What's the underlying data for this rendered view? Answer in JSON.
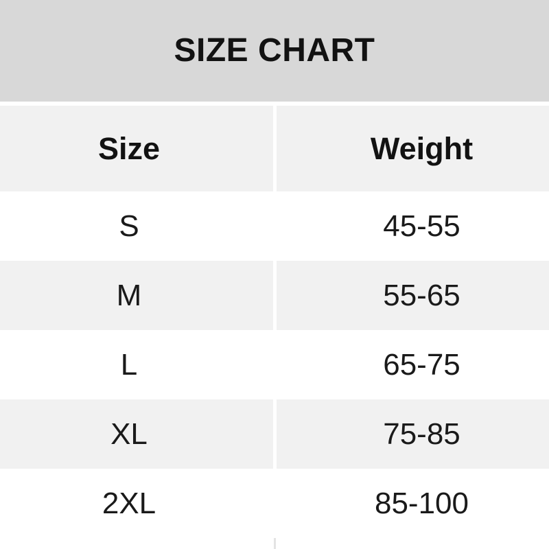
{
  "title": "SIZE CHART",
  "table": {
    "columns": [
      "Size",
      "Weight"
    ],
    "rows": [
      {
        "size": "S",
        "weight": "45-55"
      },
      {
        "size": "M",
        "weight": "55-65"
      },
      {
        "size": "L",
        "weight": "65-75"
      },
      {
        "size": "XL",
        "weight": "75-85"
      },
      {
        "size": "2XL",
        "weight": "85-100"
      }
    ]
  },
  "chart_data": {
    "type": "table",
    "title": "SIZE CHART",
    "columns": [
      "Size",
      "Weight"
    ],
    "rows": [
      [
        "S",
        "45-55"
      ],
      [
        "M",
        "55-65"
      ],
      [
        "L",
        "65-75"
      ],
      [
        "XL",
        "75-85"
      ],
      [
        "2XL",
        "85-100"
      ]
    ],
    "notes": "Weight ranges shown without units; rows alternate white and light-gray shading"
  },
  "colors": {
    "banner_bg": "#d8d8d8",
    "row_alt_bg": "#f1f1f1",
    "row_bg": "#ffffff",
    "text": "#1a1a1a"
  }
}
